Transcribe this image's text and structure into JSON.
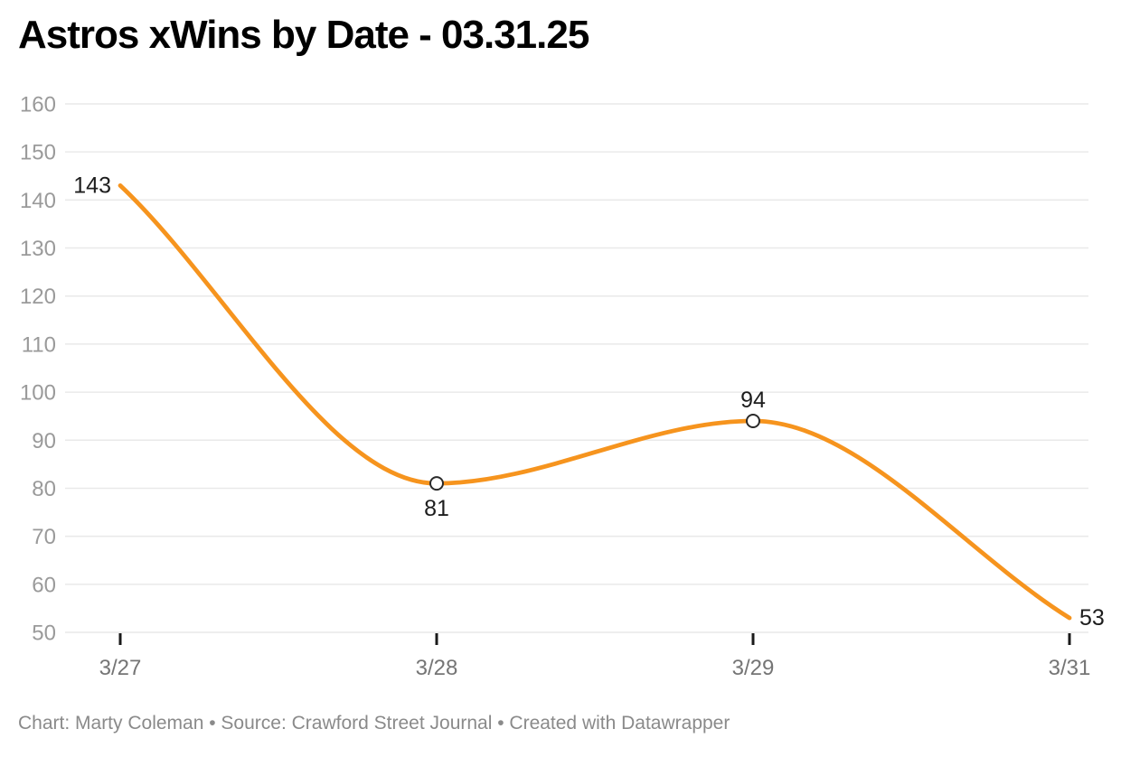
{
  "header": {
    "title": "Astros xWins by Date - 03.31.25"
  },
  "footer": {
    "text": "Chart: Marty Coleman • Source: Crawford Street Journal • Created with Datawrapper"
  },
  "chart_data": {
    "type": "line",
    "title": "Astros xWins by Date - 03.31.25",
    "categories": [
      "3/27",
      "3/28",
      "3/29",
      "3/31"
    ],
    "values": [
      143,
      81,
      94,
      53
    ],
    "points": [
      {
        "x": "3/27",
        "y": 143,
        "label": "143",
        "label_pos": "left",
        "marker": false
      },
      {
        "x": "3/28",
        "y": 81,
        "label": "81",
        "label_pos": "below",
        "marker": true
      },
      {
        "x": "3/29",
        "y": 94,
        "label": "94",
        "label_pos": "above",
        "marker": true
      },
      {
        "x": "3/31",
        "y": 53,
        "label": "53",
        "label_pos": "right",
        "marker": false
      }
    ],
    "ylim": [
      50,
      160
    ],
    "yticks": [
      50,
      60,
      70,
      80,
      90,
      100,
      110,
      120,
      130,
      140,
      150,
      160
    ],
    "xlabel": "",
    "ylabel": "",
    "legend": "none",
    "grid": "horizontal",
    "interpolation": "monotone",
    "colors": {
      "line": "#F6941E",
      "grid": "#E9E9E9",
      "y_tick_label": "#9A9A9A",
      "x_tick_label": "#757575",
      "x_tick_mark": "#1A1A1A",
      "data_label": "#1D1D1D",
      "marker_fill": "#FFFFFF",
      "marker_stroke": "#2A2A2A",
      "title": "#000000",
      "footer": "#8A8A8A",
      "background": "#FFFFFF"
    }
  }
}
